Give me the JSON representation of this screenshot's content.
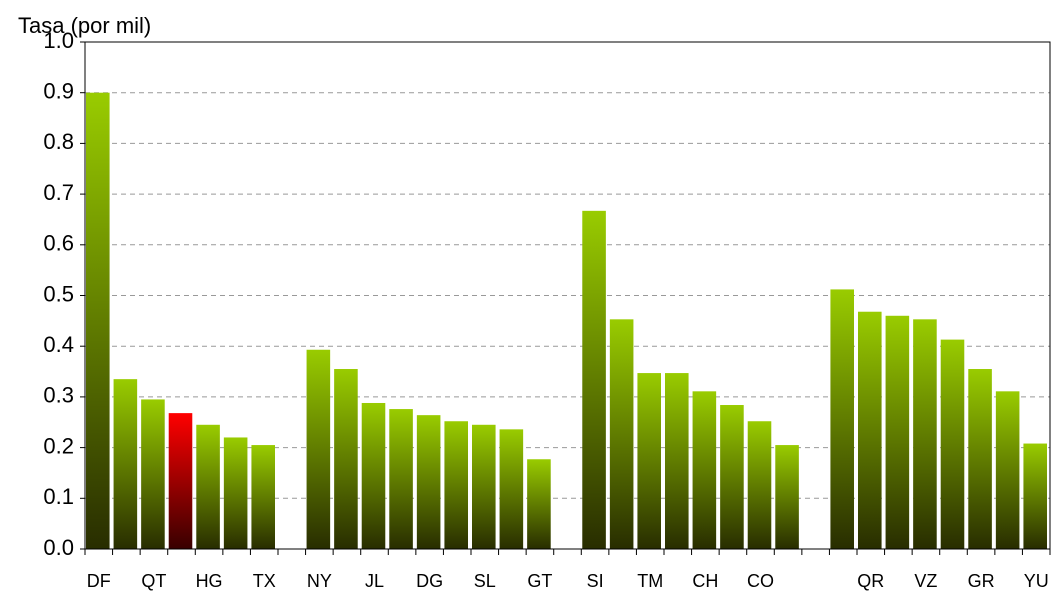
{
  "chart_data": {
    "type": "bar",
    "ylabel": "Tasa (por mil)",
    "categories": [
      "DF",
      null,
      "QT",
      null,
      "HG",
      null,
      "TX",
      null,
      "NY",
      null,
      "JL",
      null,
      "DG",
      null,
      "SL",
      null,
      "GT",
      null,
      "SI",
      null,
      "TM",
      null,
      "CH",
      null,
      "CO",
      null,
      null,
      null,
      "QR",
      null,
      "VZ",
      null,
      "GR",
      null,
      "YU"
    ],
    "values": [
      0.9,
      0.335,
      0.295,
      0.268,
      0.245,
      0.22,
      0.205,
      null,
      0.393,
      0.355,
      0.288,
      0.276,
      0.264,
      0.252,
      0.245,
      0.236,
      0.177,
      null,
      0.667,
      0.453,
      0.347,
      0.347,
      0.311,
      0.284,
      0.252,
      0.205,
      null,
      0.512,
      0.468,
      0.46,
      0.453,
      0.413,
      0.355,
      0.311,
      0.208
    ],
    "colors": [
      "#99cc00",
      "#99cc00",
      "#99cc00",
      "#ff0000",
      "#99cc00",
      "#99cc00",
      "#99cc00",
      "#99cc00",
      "#99cc00",
      "#99cc00",
      "#99cc00",
      "#99cc00",
      "#99cc00",
      "#99cc00",
      "#99cc00",
      "#99cc00",
      "#99cc00",
      "#99cc00",
      "#99cc00",
      "#99cc00",
      "#99cc00",
      "#99cc00",
      "#99cc00",
      "#99cc00",
      "#99cc00",
      "#99cc00",
      "#99cc00",
      "#99cc00",
      "#99cc00",
      "#99cc00",
      "#99cc00",
      "#99cc00",
      "#99cc00",
      "#99cc00",
      "#99cc00"
    ],
    "ylim": [
      0,
      1
    ],
    "yticks": [
      {
        "value": 0,
        "label": "0.0"
      },
      0.1,
      0.2,
      0.3,
      0.4,
      0.5,
      0.6,
      0.7,
      0.8,
      0.9,
      {
        "value": 1,
        "label": "1.0"
      }
    ],
    "grid": true
  }
}
